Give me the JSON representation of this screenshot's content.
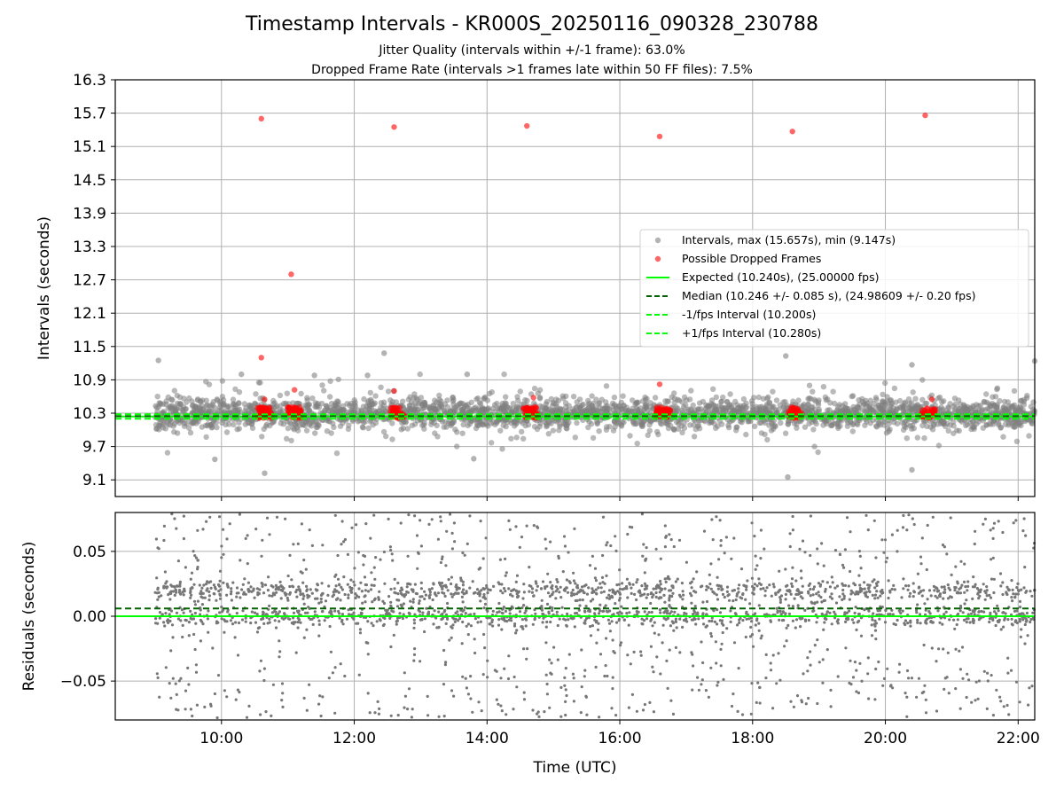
{
  "chart_data": [
    {
      "type": "scatter",
      "title": "Timestamp Intervals - KR000S_20250116_090328_230788",
      "subtitle_lines": [
        "Jitter Quality (intervals within +/-1 frame): 63.0%",
        "Dropped Frame Rate (intervals >1 frames late within 50 FF files): 7.5%"
      ],
      "xlabel": "",
      "ylabel": "Intervals (seconds)",
      "x_unit": "hours (UTC)",
      "xlim": [
        8.4,
        22.25
      ],
      "ylim": [
        8.8,
        16.3
      ],
      "yticks": [
        "9.1",
        "9.7",
        "10.3",
        "10.9",
        "11.5",
        "12.1",
        "12.7",
        "13.3",
        "13.9",
        "14.5",
        "15.1",
        "15.7",
        "16.3"
      ],
      "grid": true,
      "legend_position": "right",
      "colors": {
        "intervals": "#808080",
        "dropped": "#ff0000",
        "expected": "#00ff00",
        "median": "#006400",
        "bounds": "#00ff00"
      },
      "lines": {
        "expected": 10.24,
        "median": 10.246,
        "minus_1fps": 10.2,
        "plus_1fps": 10.28
      },
      "legend": [
        {
          "label": "Intervals, max (15.657s), min (9.147s)",
          "style": "dot-gray"
        },
        {
          "label": "Possible Dropped Frames",
          "style": "dot-red"
        },
        {
          "label": "Expected (10.240s), (25.00000 fps)",
          "style": "line-green"
        },
        {
          "label": "Median (10.246 +/- 0.085 s), (24.98609 +/- 0.20 fps)",
          "style": "dash-darkgreen"
        },
        {
          "label": "-1/fps Interval (10.200s)",
          "style": "dash-green"
        },
        {
          "label": "+1/fps Interval (10.280s)",
          "style": "dash-green"
        }
      ],
      "dropped_frames": [
        {
          "x": 10.6,
          "y": 15.6
        },
        {
          "x": 12.6,
          "y": 15.45
        },
        {
          "x": 14.6,
          "y": 15.47
        },
        {
          "x": 16.6,
          "y": 15.28
        },
        {
          "x": 18.6,
          "y": 15.37
        },
        {
          "x": 20.6,
          "y": 15.66
        },
        {
          "x": 11.05,
          "y": 12.8
        },
        {
          "x": 10.6,
          "y": 11.3
        },
        {
          "x": 12.6,
          "y": 10.7
        },
        {
          "x": 11.1,
          "y": 10.72
        },
        {
          "x": 16.6,
          "y": 10.82
        },
        {
          "x": 14.7,
          "y": 10.58
        },
        {
          "x": 20.7,
          "y": 10.55
        },
        {
          "x": 10.65,
          "y": 10.55
        }
      ],
      "dropped_clusters_x": [
        10.65,
        11.1,
        12.65,
        14.65,
        16.65,
        18.65,
        20.65
      ],
      "interval_outliers": [
        {
          "x": 9.05,
          "y": 11.25
        },
        {
          "x": 10.65,
          "y": 9.22
        },
        {
          "x": 12.45,
          "y": 11.38
        },
        {
          "x": 18.5,
          "y": 11.33
        },
        {
          "x": 18.53,
          "y": 9.15
        },
        {
          "x": 20.4,
          "y": 11.17
        },
        {
          "x": 20.4,
          "y": 9.28
        },
        {
          "x": 22.25,
          "y": 11.24
        },
        {
          "x": 9.9,
          "y": 9.47
        },
        {
          "x": 13.8,
          "y": 9.48
        },
        {
          "x": 11.4,
          "y": 10.98
        },
        {
          "x": 12.2,
          "y": 10.98
        },
        {
          "x": 13.7,
          "y": 11.0
        },
        {
          "x": 10.3,
          "y": 11.0
        }
      ],
      "interval_band": {
        "x_range": [
          9.0,
          22.25
        ],
        "center": 10.3,
        "spread": 0.25
      }
    },
    {
      "type": "scatter",
      "title": "",
      "xlabel": "Time (UTC)",
      "ylabel": "Residuals (seconds)",
      "x_unit": "hours (UTC)",
      "xlim": [
        8.4,
        22.25
      ],
      "ylim": [
        -0.08,
        0.08
      ],
      "xticks": [
        {
          "value": 10,
          "label": "10:00"
        },
        {
          "value": 12,
          "label": "12:00"
        },
        {
          "value": 14,
          "label": "14:00"
        },
        {
          "value": 16,
          "label": "16:00"
        },
        {
          "value": 18,
          "label": "18:00"
        },
        {
          "value": 20,
          "label": "20:00"
        },
        {
          "value": 22,
          "label": "22:00"
        }
      ],
      "yticks": [
        {
          "value": 0.05,
          "label": "0.05"
        },
        {
          "value": 0.0,
          "label": "0.00"
        },
        {
          "value": -0.05,
          "label": "−0.05"
        }
      ],
      "grid": true,
      "lines": {
        "zero": 0.0,
        "median_residual": 0.006
      },
      "residual_band": {
        "x_range": [
          9.0,
          22.25
        ],
        "centers": [
          0.0,
          0.02
        ],
        "spread": 0.08
      }
    }
  ]
}
